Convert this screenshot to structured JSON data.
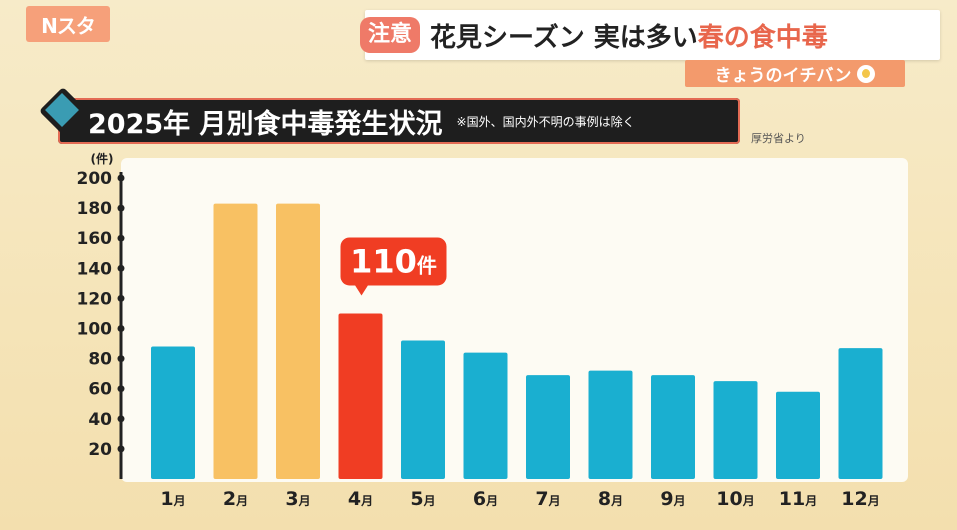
{
  "broadcast": {
    "logo_text": "Nスタ",
    "caution_label": "注意",
    "headline_main": "花見シーズン 実は多い",
    "headline_highlight": "春の食中毒",
    "segment_label": "きょうのイチバン"
  },
  "chart_title": "2025年 月別食中毒発生状況",
  "chart_note": "※国外、国内外不明の事例は除く",
  "source_note": "厚労省より",
  "colors": {
    "normal_bar": "#1aafd0",
    "spring_bar": "#f8c163",
    "highlight_bar": "#f03d23",
    "axis": "#222222"
  },
  "chart_data": {
    "type": "bar",
    "ylabel": "(件)",
    "ylim": [
      0,
      200
    ],
    "yticks": [
      20,
      40,
      60,
      80,
      100,
      120,
      140,
      160,
      180,
      200
    ],
    "categories": [
      "1月",
      "2月",
      "3月",
      "4月",
      "5月",
      "6月",
      "7月",
      "8月",
      "9月",
      "10月",
      "11月",
      "12月"
    ],
    "values": [
      88,
      183,
      183,
      110,
      92,
      84,
      69,
      72,
      69,
      65,
      58,
      87
    ],
    "bar_colors": [
      "normal",
      "spring",
      "spring",
      "highlight",
      "normal",
      "normal",
      "normal",
      "normal",
      "normal",
      "normal",
      "normal",
      "normal"
    ],
    "annotation": {
      "category_index": 3,
      "label": "110件"
    }
  }
}
